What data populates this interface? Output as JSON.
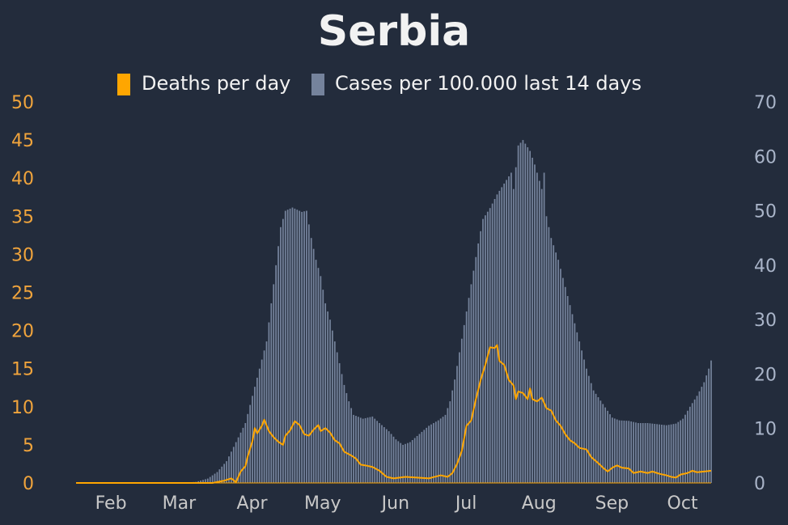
{
  "colors": {
    "background": "#232c3c",
    "title": "#f2f2f2",
    "deaths": "#ffa600",
    "cases": "#75839c",
    "left_axis": "#f0a43c",
    "right_axis": "#a9b4c8",
    "x_axis": "#c8c8c8"
  },
  "chart_data": {
    "type": "bar",
    "title": "Serbia",
    "xlabel": "",
    "legend": {
      "placement": "top",
      "entries": [
        "Deaths per day",
        "Cases per 100.000 last 14 days"
      ]
    },
    "x_tick_labels": [
      "Feb",
      "Mar",
      "Apr",
      "May",
      "Jun",
      "Jul",
      "Aug",
      "Sep",
      "Oct"
    ],
    "x_tick_dates": [
      "2020-02-01",
      "2020-03-01",
      "2020-04-01",
      "2020-05-01",
      "2020-06-01",
      "2020-07-01",
      "2020-08-01",
      "2020-09-01",
      "2020-10-01"
    ],
    "x_range": [
      "2020-01-22",
      "2020-10-18"
    ],
    "left_axis": {
      "ylim": [
        0,
        50
      ],
      "ticks": [
        0,
        5,
        10,
        15,
        20,
        25,
        30,
        35,
        40,
        45,
        50
      ]
    },
    "right_axis": {
      "ylim": [
        0,
        70
      ],
      "ticks": [
        0,
        10,
        20,
        30,
        40,
        50,
        60,
        70
      ]
    },
    "grid": false,
    "series": [
      {
        "name": "Cases per 100.000 last 14 days",
        "kind": "bar",
        "axis": "right",
        "points": [
          [
            "2020-01-22",
            0
          ],
          [
            "2020-03-06",
            0
          ],
          [
            "2020-03-13",
            0.2
          ],
          [
            "2020-03-18",
            0.8
          ],
          [
            "2020-03-22",
            2.0
          ],
          [
            "2020-03-26",
            4.0
          ],
          [
            "2020-03-30",
            7.5
          ],
          [
            "2020-04-03",
            11.0
          ],
          [
            "2020-04-06",
            16.0
          ],
          [
            "2020-04-09",
            21.0
          ],
          [
            "2020-04-12",
            26.0
          ],
          [
            "2020-04-14",
            33.0
          ],
          [
            "2020-04-16",
            40.0
          ],
          [
            "2020-04-18",
            47.0
          ],
          [
            "2020-04-20",
            50.0
          ],
          [
            "2020-04-23",
            50.6
          ],
          [
            "2020-04-27",
            49.8
          ],
          [
            "2020-04-29",
            50.0
          ],
          [
            "2020-05-01",
            45.0
          ],
          [
            "2020-05-03",
            41.0
          ],
          [
            "2020-05-05",
            38.0
          ],
          [
            "2020-05-07",
            33.0
          ],
          [
            "2020-05-09",
            30.0
          ],
          [
            "2020-05-11",
            26.0
          ],
          [
            "2020-05-13",
            22.0
          ],
          [
            "2020-05-15",
            18.0
          ],
          [
            "2020-05-17",
            15.0
          ],
          [
            "2020-05-19",
            12.5
          ],
          [
            "2020-05-23",
            11.8
          ],
          [
            "2020-05-27",
            12.2
          ],
          [
            "2020-05-30",
            11.0
          ],
          [
            "2020-06-03",
            9.5
          ],
          [
            "2020-06-06",
            8.0
          ],
          [
            "2020-06-09",
            7.0
          ],
          [
            "2020-06-12",
            7.5
          ],
          [
            "2020-06-16",
            9.0
          ],
          [
            "2020-06-20",
            10.5
          ],
          [
            "2020-06-24",
            11.5
          ],
          [
            "2020-06-27",
            12.5
          ],
          [
            "2020-06-29",
            15.0
          ],
          [
            "2020-07-01",
            19.0
          ],
          [
            "2020-07-03",
            24.0
          ],
          [
            "2020-07-05",
            29.0
          ],
          [
            "2020-07-07",
            34.0
          ],
          [
            "2020-07-09",
            39.0
          ],
          [
            "2020-07-11",
            44.0
          ],
          [
            "2020-07-13",
            48.5
          ],
          [
            "2020-07-16",
            50.5
          ],
          [
            "2020-07-19",
            53.0
          ],
          [
            "2020-07-22",
            55.0
          ],
          [
            "2020-07-25",
            57.0
          ],
          [
            "2020-07-26",
            54.0
          ],
          [
            "2020-07-28",
            62.0
          ],
          [
            "2020-07-30",
            63.0
          ],
          [
            "2020-08-02",
            61.0
          ],
          [
            "2020-08-04",
            58.5
          ],
          [
            "2020-08-07",
            54.0
          ],
          [
            "2020-08-08",
            57.0
          ],
          [
            "2020-08-09",
            49.0
          ],
          [
            "2020-08-11",
            45.0
          ],
          [
            "2020-08-14",
            41.0
          ],
          [
            "2020-08-17",
            36.0
          ],
          [
            "2020-08-20",
            31.0
          ],
          [
            "2020-08-23",
            26.0
          ],
          [
            "2020-08-26",
            21.0
          ],
          [
            "2020-08-29",
            17.0
          ],
          [
            "2020-09-02",
            14.5
          ],
          [
            "2020-09-06",
            12.0
          ],
          [
            "2020-09-09",
            11.5
          ],
          [
            "2020-09-13",
            11.4
          ],
          [
            "2020-09-17",
            11.0
          ],
          [
            "2020-09-21",
            11.0
          ],
          [
            "2020-09-25",
            10.8
          ],
          [
            "2020-09-29",
            10.6
          ],
          [
            "2020-10-03",
            10.9
          ],
          [
            "2020-10-06",
            11.8
          ],
          [
            "2020-10-09",
            14.0
          ],
          [
            "2020-10-12",
            16.0
          ],
          [
            "2020-10-15",
            18.5
          ],
          [
            "2020-10-17",
            21.0
          ],
          [
            "2020-10-18",
            22.5
          ]
        ]
      },
      {
        "name": "Deaths per day",
        "kind": "line",
        "axis": "left",
        "points": [
          [
            "2020-01-22",
            0
          ],
          [
            "2020-03-20",
            0
          ],
          [
            "2020-03-25",
            0.3
          ],
          [
            "2020-03-28",
            0.6
          ],
          [
            "2020-03-30",
            0.1
          ],
          [
            "2020-04-01",
            1.5
          ],
          [
            "2020-04-03",
            2.2
          ],
          [
            "2020-04-04",
            3.5
          ],
          [
            "2020-04-06",
            5.5
          ],
          [
            "2020-04-07",
            7.2
          ],
          [
            "2020-04-08",
            6.5
          ],
          [
            "2020-04-10",
            7.5
          ],
          [
            "2020-04-11",
            8.3
          ],
          [
            "2020-04-13",
            6.8
          ],
          [
            "2020-04-15",
            6.0
          ],
          [
            "2020-04-17",
            5.4
          ],
          [
            "2020-04-19",
            5.0
          ],
          [
            "2020-04-20",
            6.2
          ],
          [
            "2020-04-22",
            6.9
          ],
          [
            "2020-04-24",
            8.1
          ],
          [
            "2020-04-26",
            7.6
          ],
          [
            "2020-04-28",
            6.4
          ],
          [
            "2020-04-30",
            6.2
          ],
          [
            "2020-05-02",
            7.0
          ],
          [
            "2020-05-04",
            7.6
          ],
          [
            "2020-05-05",
            6.8
          ],
          [
            "2020-05-07",
            7.2
          ],
          [
            "2020-05-09",
            6.6
          ],
          [
            "2020-05-11",
            5.6
          ],
          [
            "2020-05-13",
            5.2
          ],
          [
            "2020-05-15",
            4.1
          ],
          [
            "2020-05-18",
            3.6
          ],
          [
            "2020-05-20",
            3.2
          ],
          [
            "2020-05-22",
            2.4
          ],
          [
            "2020-05-24",
            2.3
          ],
          [
            "2020-05-27",
            2.1
          ],
          [
            "2020-05-30",
            1.6
          ],
          [
            "2020-06-02",
            0.8
          ],
          [
            "2020-06-05",
            0.6
          ],
          [
            "2020-06-10",
            0.8
          ],
          [
            "2020-06-15",
            0.7
          ],
          [
            "2020-06-20",
            0.6
          ],
          [
            "2020-06-25",
            1.0
          ],
          [
            "2020-06-28",
            0.8
          ],
          [
            "2020-06-30",
            1.3
          ],
          [
            "2020-07-02",
            2.5
          ],
          [
            "2020-07-04",
            4.2
          ],
          [
            "2020-07-06",
            7.5
          ],
          [
            "2020-07-08",
            8.2
          ],
          [
            "2020-07-10",
            11.0
          ],
          [
            "2020-07-12",
            13.5
          ],
          [
            "2020-07-14",
            15.5
          ],
          [
            "2020-07-16",
            17.8
          ],
          [
            "2020-07-18",
            17.7
          ],
          [
            "2020-07-19",
            18.1
          ],
          [
            "2020-07-20",
            16.0
          ],
          [
            "2020-07-22",
            15.5
          ],
          [
            "2020-07-24",
            13.5
          ],
          [
            "2020-07-26",
            12.8
          ],
          [
            "2020-07-27",
            11.0
          ],
          [
            "2020-07-28",
            12.0
          ],
          [
            "2020-07-30",
            11.8
          ],
          [
            "2020-08-01",
            11.0
          ],
          [
            "2020-08-02",
            12.4
          ],
          [
            "2020-08-03",
            11.0
          ],
          [
            "2020-08-05",
            10.7
          ],
          [
            "2020-08-07",
            11.2
          ],
          [
            "2020-08-09",
            9.8
          ],
          [
            "2020-08-11",
            9.5
          ],
          [
            "2020-08-13",
            8.2
          ],
          [
            "2020-08-15",
            7.5
          ],
          [
            "2020-08-17",
            6.4
          ],
          [
            "2020-08-19",
            5.6
          ],
          [
            "2020-08-21",
            5.2
          ],
          [
            "2020-08-23",
            4.6
          ],
          [
            "2020-08-26",
            4.4
          ],
          [
            "2020-08-28",
            3.4
          ],
          [
            "2020-08-31",
            2.6
          ],
          [
            "2020-09-02",
            2.0
          ],
          [
            "2020-09-04",
            1.5
          ],
          [
            "2020-09-06",
            2.0
          ],
          [
            "2020-09-08",
            2.3
          ],
          [
            "2020-09-10",
            2.0
          ],
          [
            "2020-09-13",
            1.9
          ],
          [
            "2020-09-15",
            1.3
          ],
          [
            "2020-09-18",
            1.5
          ],
          [
            "2020-09-21",
            1.3
          ],
          [
            "2020-09-23",
            1.5
          ],
          [
            "2020-09-26",
            1.2
          ],
          [
            "2020-09-29",
            1.0
          ],
          [
            "2020-10-01",
            0.8
          ],
          [
            "2020-10-03",
            0.7
          ],
          [
            "2020-10-05",
            1.1
          ],
          [
            "2020-10-08",
            1.3
          ],
          [
            "2020-10-10",
            1.6
          ],
          [
            "2020-10-12",
            1.4
          ],
          [
            "2020-10-15",
            1.5
          ],
          [
            "2020-10-18",
            1.6
          ]
        ]
      }
    ]
  }
}
